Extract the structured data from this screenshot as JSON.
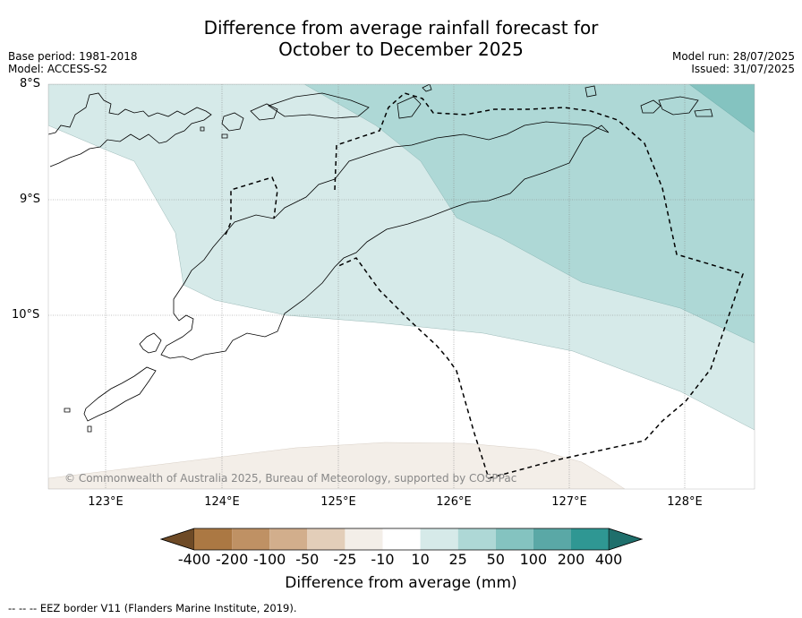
{
  "title_line1": "Difference from average rainfall forecast for",
  "title_line2": "October to December 2025",
  "base_period": "Base period: 1981-2018",
  "model": "Model: ACCESS-S2",
  "model_run": "Model run: 28/07/2025",
  "issued": "Issued: 31/07/2025",
  "map": {
    "lat_labels": [
      "8°S",
      "9°S",
      "10°S"
    ],
    "lon_labels": [
      "123°E",
      "124°E",
      "125°E",
      "126°E",
      "127°E",
      "128°E"
    ],
    "copyright": "© Commonwealth of Australia 2025, Bureau of Meteorology, supported by COSPPac"
  },
  "colorbar": {
    "title": "Difference from average (mm)",
    "ticks": [
      "-400",
      "-200",
      "-100",
      "-50",
      "-25",
      "-10",
      "10",
      "25",
      "50",
      "100",
      "200",
      "400"
    ],
    "colors": [
      "#6e4a26",
      "#ab7843",
      "#bf9164",
      "#d2ae8c",
      "#e3ceb9",
      "#f3eee8",
      "#ffffff",
      "#d6eae9",
      "#aed8d6",
      "#84c3c0",
      "#5aa8a6",
      "#2f9793",
      "#1f6f6c"
    ]
  },
  "footer": "--  --  -- EEZ border V11 (Flanders Marine Institute, 2019)."
}
